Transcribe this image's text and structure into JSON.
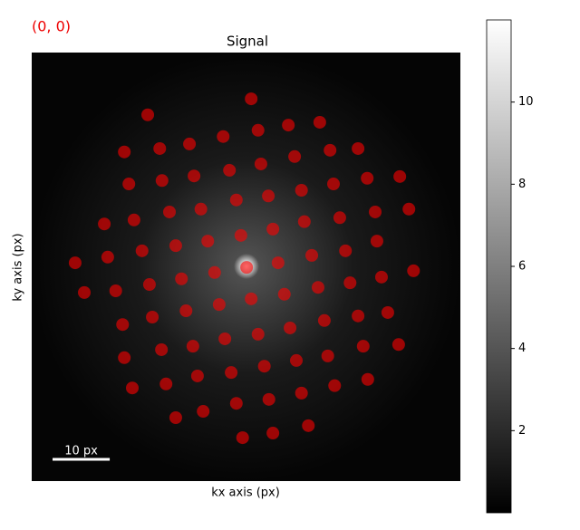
{
  "chart_data": {
    "type": "scatter",
    "title": "Signal",
    "index_label": "(0, 0)",
    "xlabel": "kx axis (px)",
    "ylabel": "ky axis (px)",
    "xlim": [
      0,
      75
    ],
    "ylim": [
      75,
      0
    ],
    "series": [
      {
        "color": "#ff0000",
        "alpha": 0.6,
        "x": [
          38.4,
          20.3,
          50.4,
          44.9,
          39.6,
          33.5,
          27.6,
          22.4,
          16.2,
          52.2,
          57.1,
          46.0,
          40.1,
          34.6,
          28.4,
          22.8,
          17.0,
          58.7,
          64.4,
          52.8,
          47.2,
          41.4,
          35.8,
          29.6,
          24.1,
          17.9,
          12.7,
          66.0,
          60.1,
          53.9,
          47.7,
          42.2,
          36.6,
          30.8,
          25.2,
          19.3,
          13.3,
          7.6,
          60.4,
          54.9,
          49.0,
          43.1,
          37.6,
          32.0,
          26.2,
          20.6,
          14.7,
          9.2,
          66.8,
          61.2,
          55.7,
          50.1,
          44.2,
          38.4,
          32.8,
          27.0,
          21.1,
          15.9,
          62.3,
          57.1,
          51.2,
          45.2,
          39.6,
          33.8,
          28.2,
          22.7,
          16.2,
          64.2,
          58.0,
          51.8,
          46.3,
          40.7,
          34.9,
          29.0,
          23.5,
          17.6,
          58.8,
          53.0,
          47.2,
          41.5,
          35.8,
          30.0,
          25.2,
          48.4,
          42.2,
          36.9
        ],
        "y": [
          8.1,
          10.9,
          12.2,
          12.7,
          13.6,
          14.7,
          16.0,
          16.8,
          17.4,
          17.1,
          16.8,
          18.2,
          19.5,
          20.6,
          21.6,
          22.4,
          23.0,
          22.0,
          21.7,
          23.0,
          24.1,
          25.1,
          25.8,
          27.4,
          27.9,
          29.3,
          30.0,
          27.4,
          27.9,
          28.9,
          29.6,
          30.9,
          32.0,
          33.0,
          33.8,
          34.7,
          35.8,
          36.8,
          33.0,
          34.7,
          35.5,
          36.8,
          37.6,
          38.5,
          39.6,
          40.6,
          41.7,
          42.0,
          38.2,
          39.3,
          40.3,
          41.1,
          42.3,
          43.1,
          44.1,
          45.2,
          46.3,
          47.6,
          45.5,
          46.1,
          46.9,
          48.2,
          49.3,
          50.1,
          51.4,
          52.0,
          53.4,
          51.1,
          51.4,
          53.1,
          53.9,
          54.9,
          56.0,
          56.6,
          58.0,
          58.7,
          57.2,
          58.3,
          59.6,
          60.7,
          61.4,
          62.8,
          63.9,
          65.3,
          66.6,
          67.4
        ]
      }
    ],
    "colorbar": {
      "clim": [
        0,
        12
      ],
      "ticks": [
        2,
        4,
        6,
        8,
        10
      ]
    },
    "scalebar": {
      "length": 10,
      "label": "10 px"
    }
  }
}
